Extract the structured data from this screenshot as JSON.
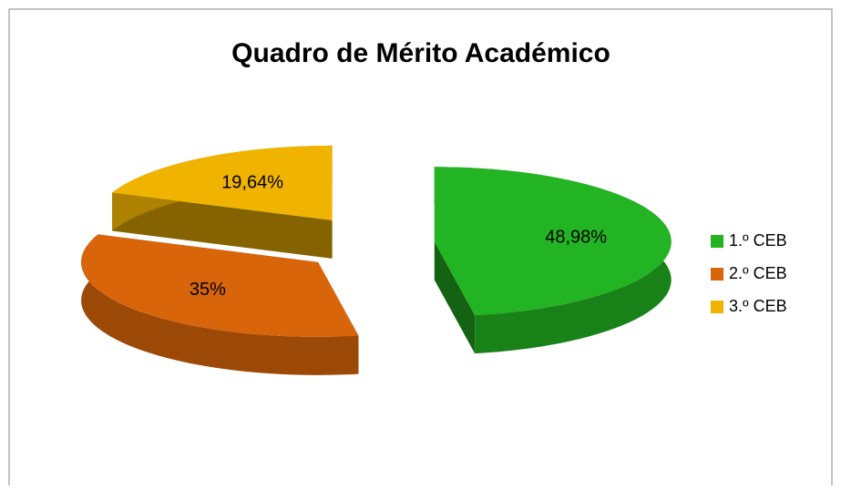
{
  "chart_data": {
    "type": "pie",
    "title": "Quadro de Mérito Académico",
    "categories": [
      "1.º CEB",
      "2.º CEB",
      "3.º CEB"
    ],
    "values": [
      48.98,
      35,
      19.64
    ],
    "value_labels": [
      "48,98%",
      "35%",
      "19,64%"
    ],
    "colors": [
      "#22b422",
      "#d8650a",
      "#f0b400"
    ],
    "legend": "right"
  }
}
